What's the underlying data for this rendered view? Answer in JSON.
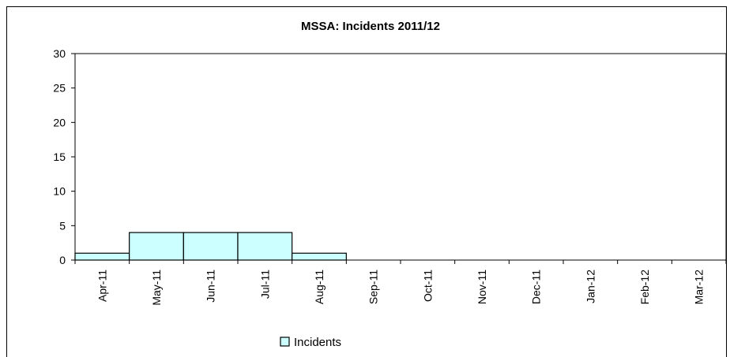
{
  "chart_data": {
    "type": "bar",
    "title": "MSSA: Incidents 2011/12",
    "categories": [
      "Apr-11",
      "May-11",
      "Jun-11",
      "Jul-11",
      "Aug-11",
      "Sep-11",
      "Oct-11",
      "Nov-11",
      "Dec-11",
      "Jan-12",
      "Feb-12",
      "Mar-12"
    ],
    "series": [
      {
        "name": "Incidents",
        "values": [
          1,
          4,
          4,
          4,
          1,
          0,
          0,
          0,
          0,
          0,
          0,
          0
        ]
      }
    ],
    "ylim": [
      0,
      30
    ],
    "yticks": [
      0,
      5,
      10,
      15,
      20,
      25,
      30
    ],
    "xlabel": "",
    "ylabel": "",
    "grid": false,
    "legend_position": "bottom-center",
    "colors": {
      "bar_fill": "#ccffff",
      "bar_stroke": "#000000",
      "axis": "#000000"
    }
  }
}
